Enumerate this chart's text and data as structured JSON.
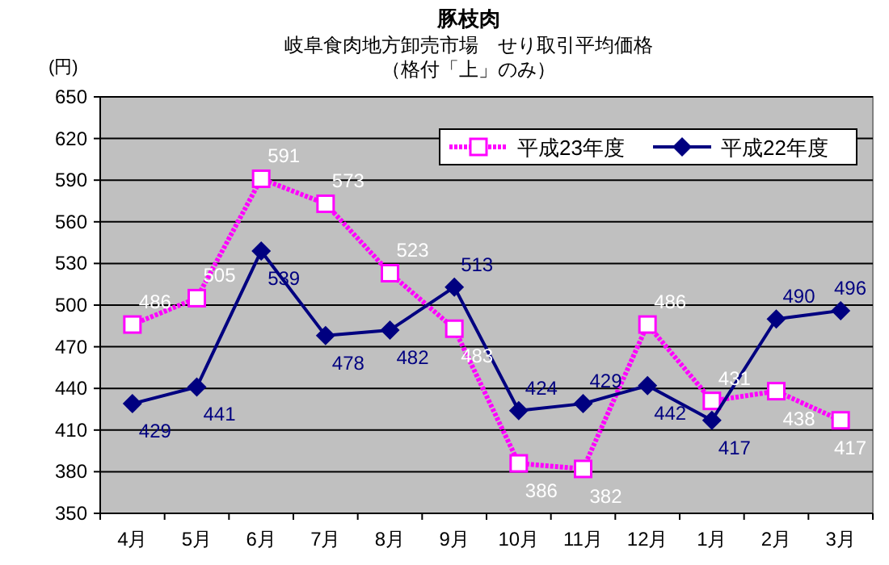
{
  "chart_data": {
    "type": "line",
    "title": "豚枝肉",
    "subtitle": "岐阜食肉地方卸売市場　せり取引平均価格",
    "annotations": [
      "（格付「上」のみ）"
    ],
    "ylabel": "(円)",
    "categories": [
      "4月",
      "5月",
      "6月",
      "7月",
      "8月",
      "9月",
      "10月",
      "11月",
      "12月",
      "1月",
      "2月",
      "3月"
    ],
    "series": [
      {
        "name": "平成23年度",
        "color": "#ff00ff",
        "marker": "square",
        "line_style": "dotted",
        "values": [
          486,
          505,
          591,
          573,
          523,
          483,
          386,
          382,
          486,
          431,
          438,
          417
        ]
      },
      {
        "name": "平成22年度",
        "color": "#000080",
        "marker": "diamond",
        "line_style": "solid",
        "values": [
          429,
          441,
          539,
          478,
          482,
          513,
          424,
          429,
          442,
          417,
          490,
          496
        ]
      }
    ],
    "ylim": [
      350,
      650
    ],
    "yticks": [
      350,
      380,
      410,
      440,
      470,
      500,
      530,
      560,
      590,
      620,
      650
    ],
    "grid": "y",
    "legend": "top right",
    "data_labels": true
  }
}
